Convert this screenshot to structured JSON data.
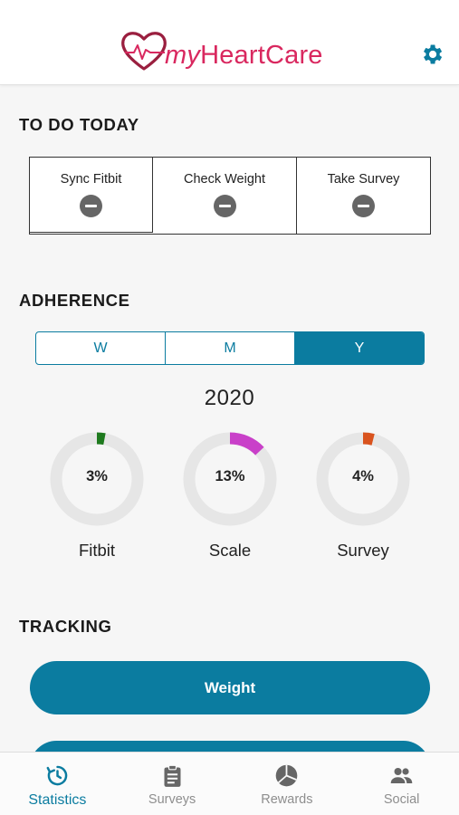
{
  "header": {
    "logo_text_my": "my",
    "logo_text_rest": "HeartCare",
    "settings_icon": "gear-icon",
    "brand_color": "#d9285f",
    "accent_color": "#0b7ca0"
  },
  "todo": {
    "title": "TO DO TODAY",
    "items": [
      {
        "label": "Sync Fitbit",
        "status_icon": "minus-circle-icon"
      },
      {
        "label": "Check Weight",
        "status_icon": "minus-circle-icon"
      },
      {
        "label": "Take Survey",
        "status_icon": "minus-circle-icon"
      }
    ]
  },
  "adherence": {
    "title": "ADHERENCE",
    "periods": [
      "W",
      "M",
      "Y"
    ],
    "selected_period": "Y",
    "year": "2020",
    "rings": [
      {
        "label": "Fitbit",
        "percent_text": "3%",
        "fraction": 0.03,
        "color": "#1e7a1e"
      },
      {
        "label": "Scale",
        "percent_text": "13%",
        "fraction": 0.13,
        "color": "#c940c9"
      },
      {
        "label": "Survey",
        "percent_text": "4%",
        "fraction": 0.04,
        "color": "#d9531e"
      }
    ]
  },
  "tracking": {
    "title": "TRACKING",
    "buttons": [
      "Weight",
      ""
    ]
  },
  "tabbar": {
    "tabs": [
      {
        "label": "Statistics",
        "icon": "clock-refresh-icon",
        "active": true
      },
      {
        "label": "Surveys",
        "icon": "clipboard-icon",
        "active": false
      },
      {
        "label": "Rewards",
        "icon": "pie-icon",
        "active": false
      },
      {
        "label": "Social",
        "icon": "people-icon",
        "active": false
      }
    ]
  }
}
